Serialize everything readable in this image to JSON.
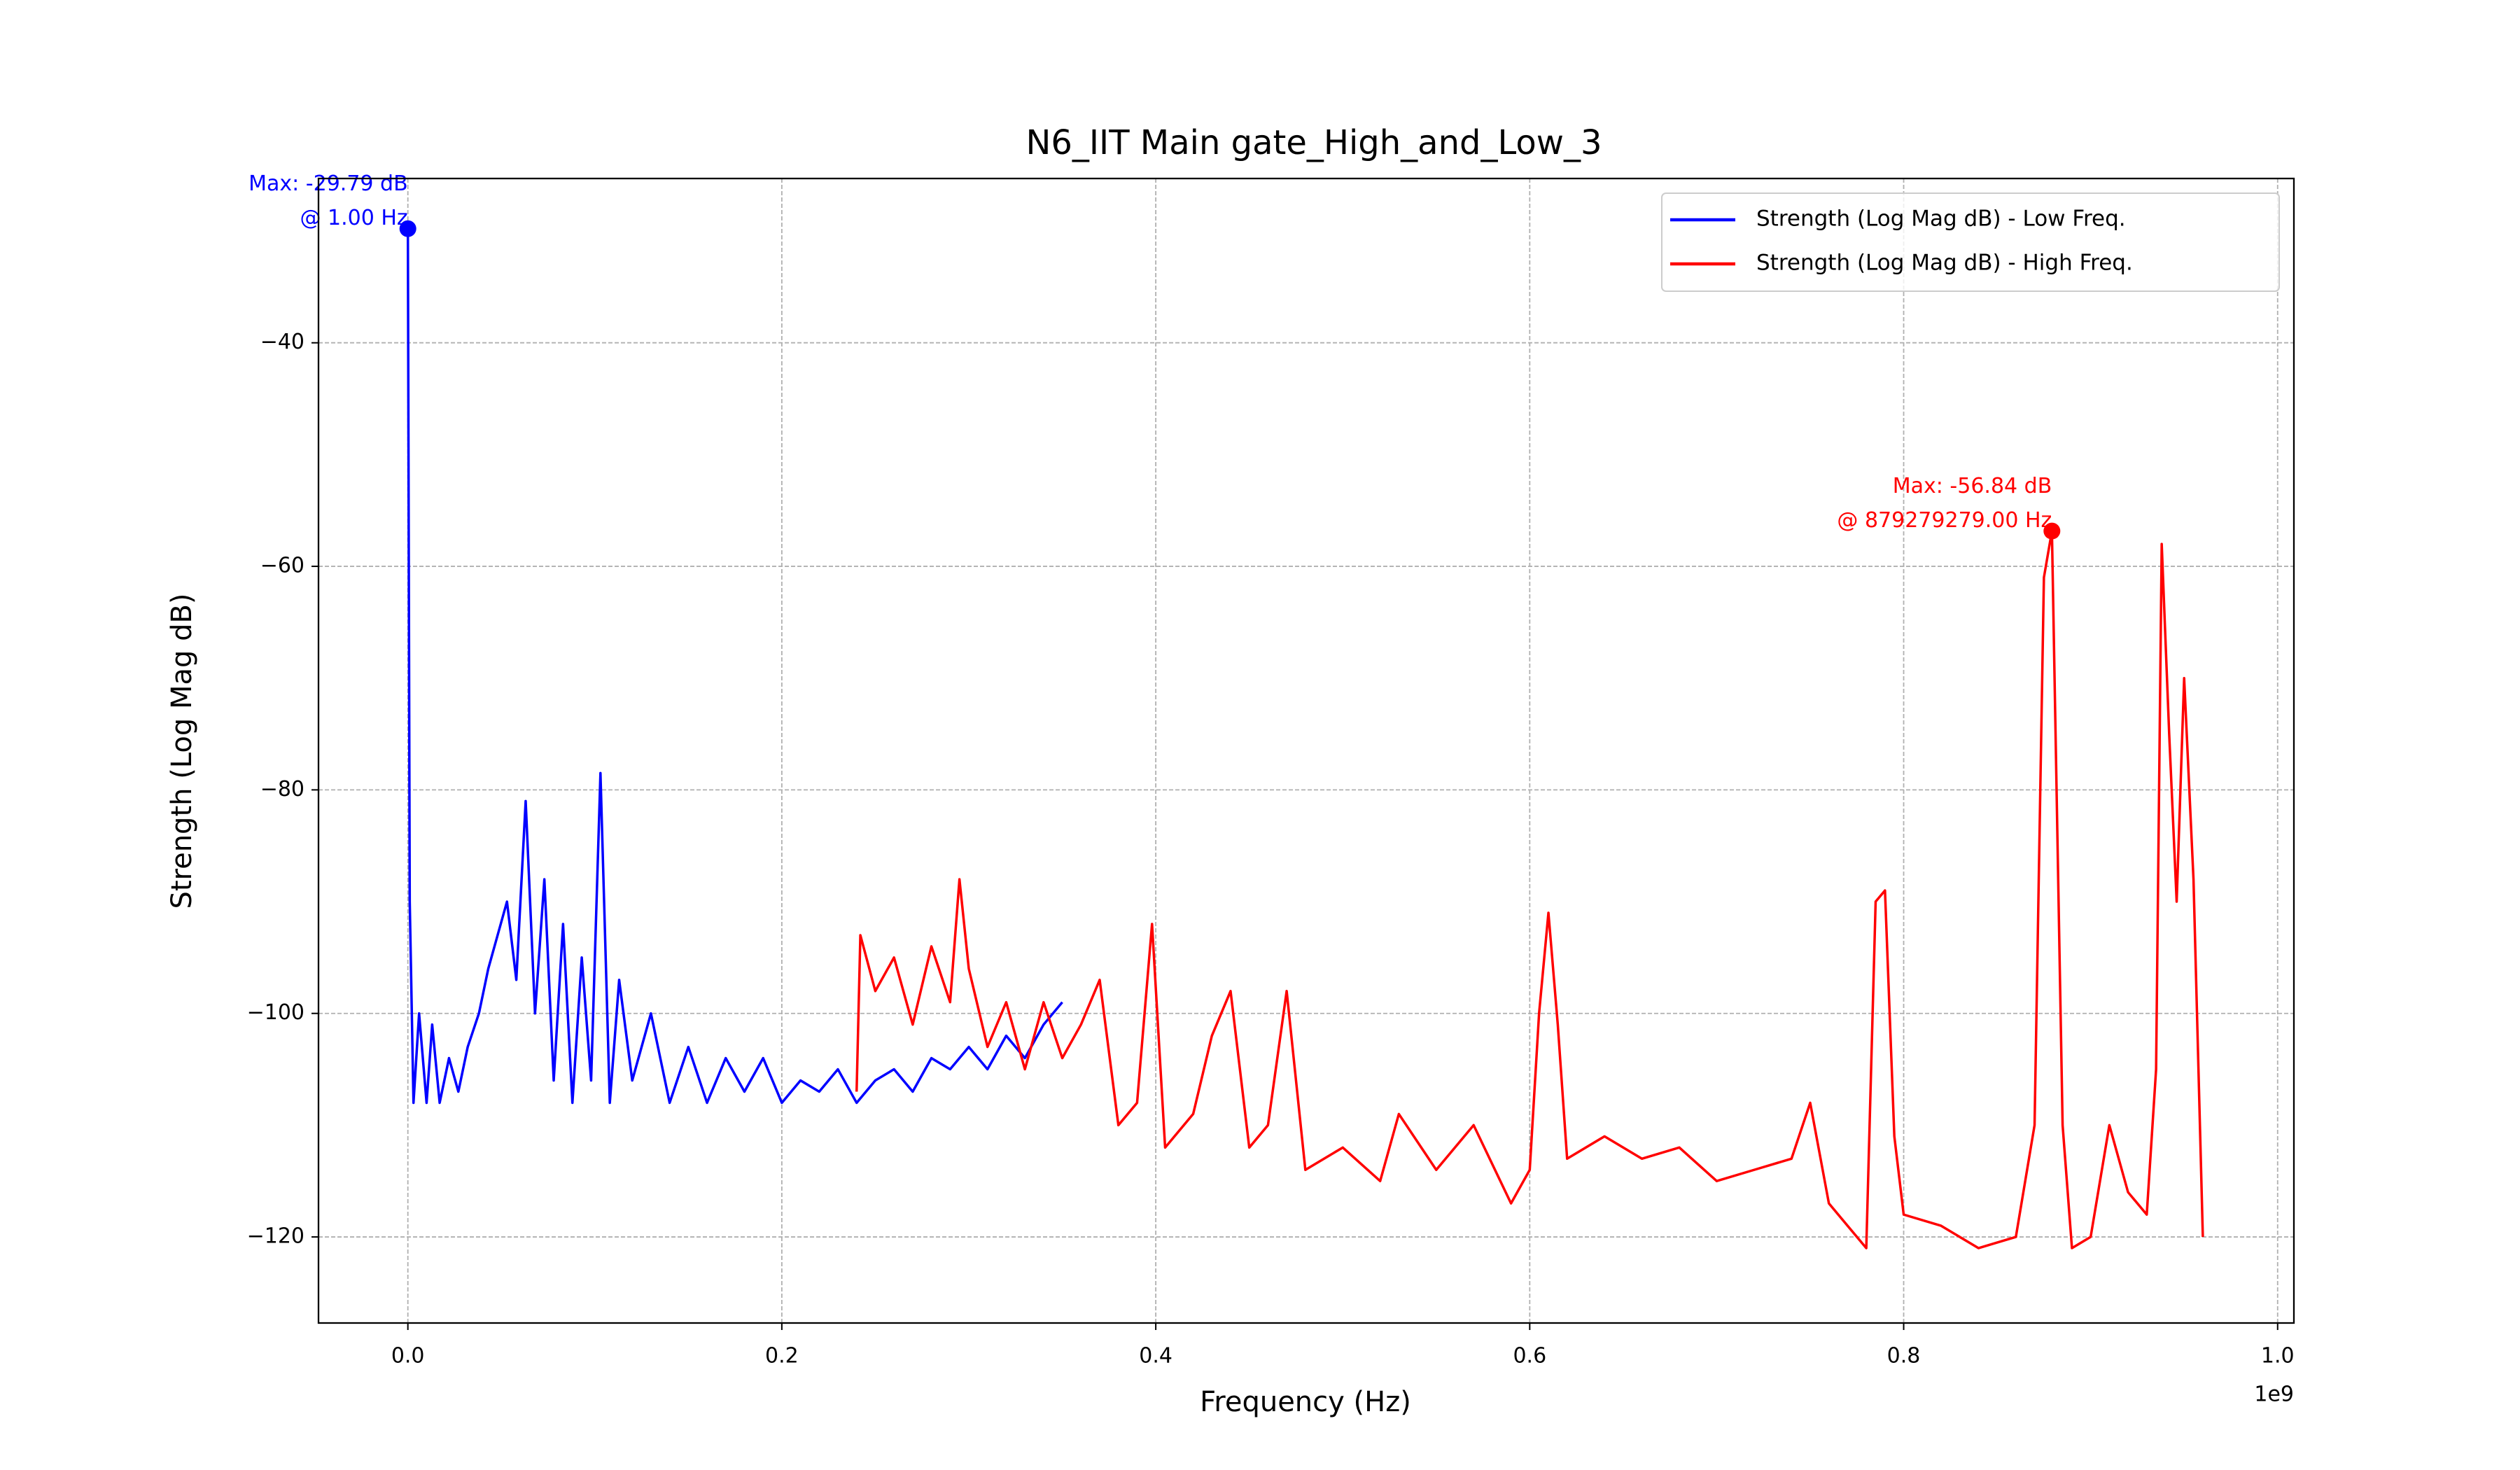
{
  "chart_data": {
    "type": "line",
    "title": "N6_IIT Main gate_High_and_Low_3",
    "x_label": "Frequency (Hz)",
    "y_label": "Strength (Log Mag dB)",
    "x_offset_label": "1e9",
    "xlim": [
      -47800000,
      1008700000
    ],
    "ylim": [
      -127.7,
      -25.3
    ],
    "xticks": [
      {
        "value": 0,
        "label": "0.0"
      },
      {
        "value": 200000000,
        "label": "0.2"
      },
      {
        "value": 400000000,
        "label": "0.4"
      },
      {
        "value": 600000000,
        "label": "0.6"
      },
      {
        "value": 800000000,
        "label": "0.8"
      },
      {
        "value": 1000000000,
        "label": "1.0"
      }
    ],
    "yticks": [
      {
        "value": -120,
        "label": "−120"
      },
      {
        "value": -100,
        "label": "−100"
      },
      {
        "value": -80,
        "label": "−80"
      },
      {
        "value": -60,
        "label": "−60"
      },
      {
        "value": -40,
        "label": "−40"
      }
    ],
    "grid": true,
    "legend": "upper right",
    "series": [
      {
        "name": "Strength (Log Mag dB) - Low Freq.",
        "color": "#0000ff",
        "x": [
          1,
          1000000,
          3000000,
          6000000,
          10000000,
          13000000,
          17000000,
          22000000,
          27000000,
          32000000,
          38000000,
          43000000,
          48000000,
          53000000,
          58000000,
          63000000,
          68000000,
          73000000,
          78000000,
          83000000,
          88000000,
          93000000,
          98000000,
          103000000,
          108000000,
          113000000,
          120000000,
          130000000,
          140000000,
          150000000,
          160000000,
          170000000,
          180000000,
          190000000,
          200000000,
          210000000,
          220000000,
          230000000,
          240000000,
          250000000,
          260000000,
          270000000,
          280000000,
          290000000,
          300000000,
          310000000,
          320000000,
          330000000,
          340000000,
          350000000
        ],
        "values": [
          -29.79,
          -90,
          -108,
          -100,
          -108,
          -101,
          -108,
          -104,
          -107,
          -103,
          -100,
          -96,
          -93,
          -90,
          -97,
          -81,
          -100,
          -88,
          -106,
          -92,
          -108,
          -95,
          -106,
          -78.5,
          -108,
          -97,
          -106,
          -100,
          -108,
          -103,
          -108,
          -104,
          -107,
          -104,
          -108,
          -106,
          -107,
          -105,
          -108,
          -106,
          -105,
          -107,
          -104,
          -105,
          -103,
          -105,
          -102,
          -104,
          -101,
          -99
        ]
      },
      {
        "name": "Strength (Log Mag dB) - High Freq.",
        "color": "#ff0000",
        "x": [
          240000000,
          242000000,
          250000000,
          260000000,
          270000000,
          280000000,
          290000000,
          295000000,
          300000000,
          310000000,
          320000000,
          330000000,
          340000000,
          350000000,
          360000000,
          370000000,
          380000000,
          390000000,
          398000000,
          405000000,
          420000000,
          430000000,
          440000000,
          450000000,
          460000000,
          470000000,
          480000000,
          500000000,
          520000000,
          530000000,
          550000000,
          570000000,
          590000000,
          600000000,
          605000000,
          610000000,
          615000000,
          620000000,
          640000000,
          660000000,
          680000000,
          700000000,
          720000000,
          740000000,
          750000000,
          760000000,
          770000000,
          780000000,
          785000000,
          790000000,
          795000000,
          800000000,
          820000000,
          840000000,
          860000000,
          870000000,
          875000000,
          879279279,
          885000000,
          890000000,
          900000000,
          910000000,
          920000000,
          930000000,
          935000000,
          938000000,
          942000000,
          946000000,
          950000000,
          955000000,
          960000000
        ],
        "values": [
          -107,
          -93,
          -98,
          -95,
          -101,
          -94,
          -99,
          -88,
          -96,
          -103,
          -99,
          -105,
          -99,
          -104,
          -101,
          -97,
          -110,
          -108,
          -92,
          -112,
          -109,
          -102,
          -98,
          -112,
          -110,
          -98,
          -114,
          -112,
          -115,
          -109,
          -114,
          -110,
          -117,
          -114,
          -100,
          -91,
          -101,
          -113,
          -111,
          -113,
          -112,
          -115,
          -114,
          -113,
          -108,
          -117,
          -119,
          -121,
          -90,
          -89,
          -111,
          -118,
          -119,
          -121,
          -120,
          -110,
          -61,
          -56.84,
          -110,
          -121,
          -120,
          -110,
          -116,
          -118,
          -105,
          -58,
          -75,
          -90,
          -70,
          -88,
          -120
        ]
      }
    ],
    "annotations": [
      {
        "lines": [
          "Max: -29.79 dB",
          "@ 1.00 Hz"
        ],
        "color": "#0000ff"
      },
      {
        "lines": [
          "Max: -56.84 dB",
          "@ 879279279.00 Hz"
        ],
        "color": "#ff0000"
      }
    ]
  }
}
